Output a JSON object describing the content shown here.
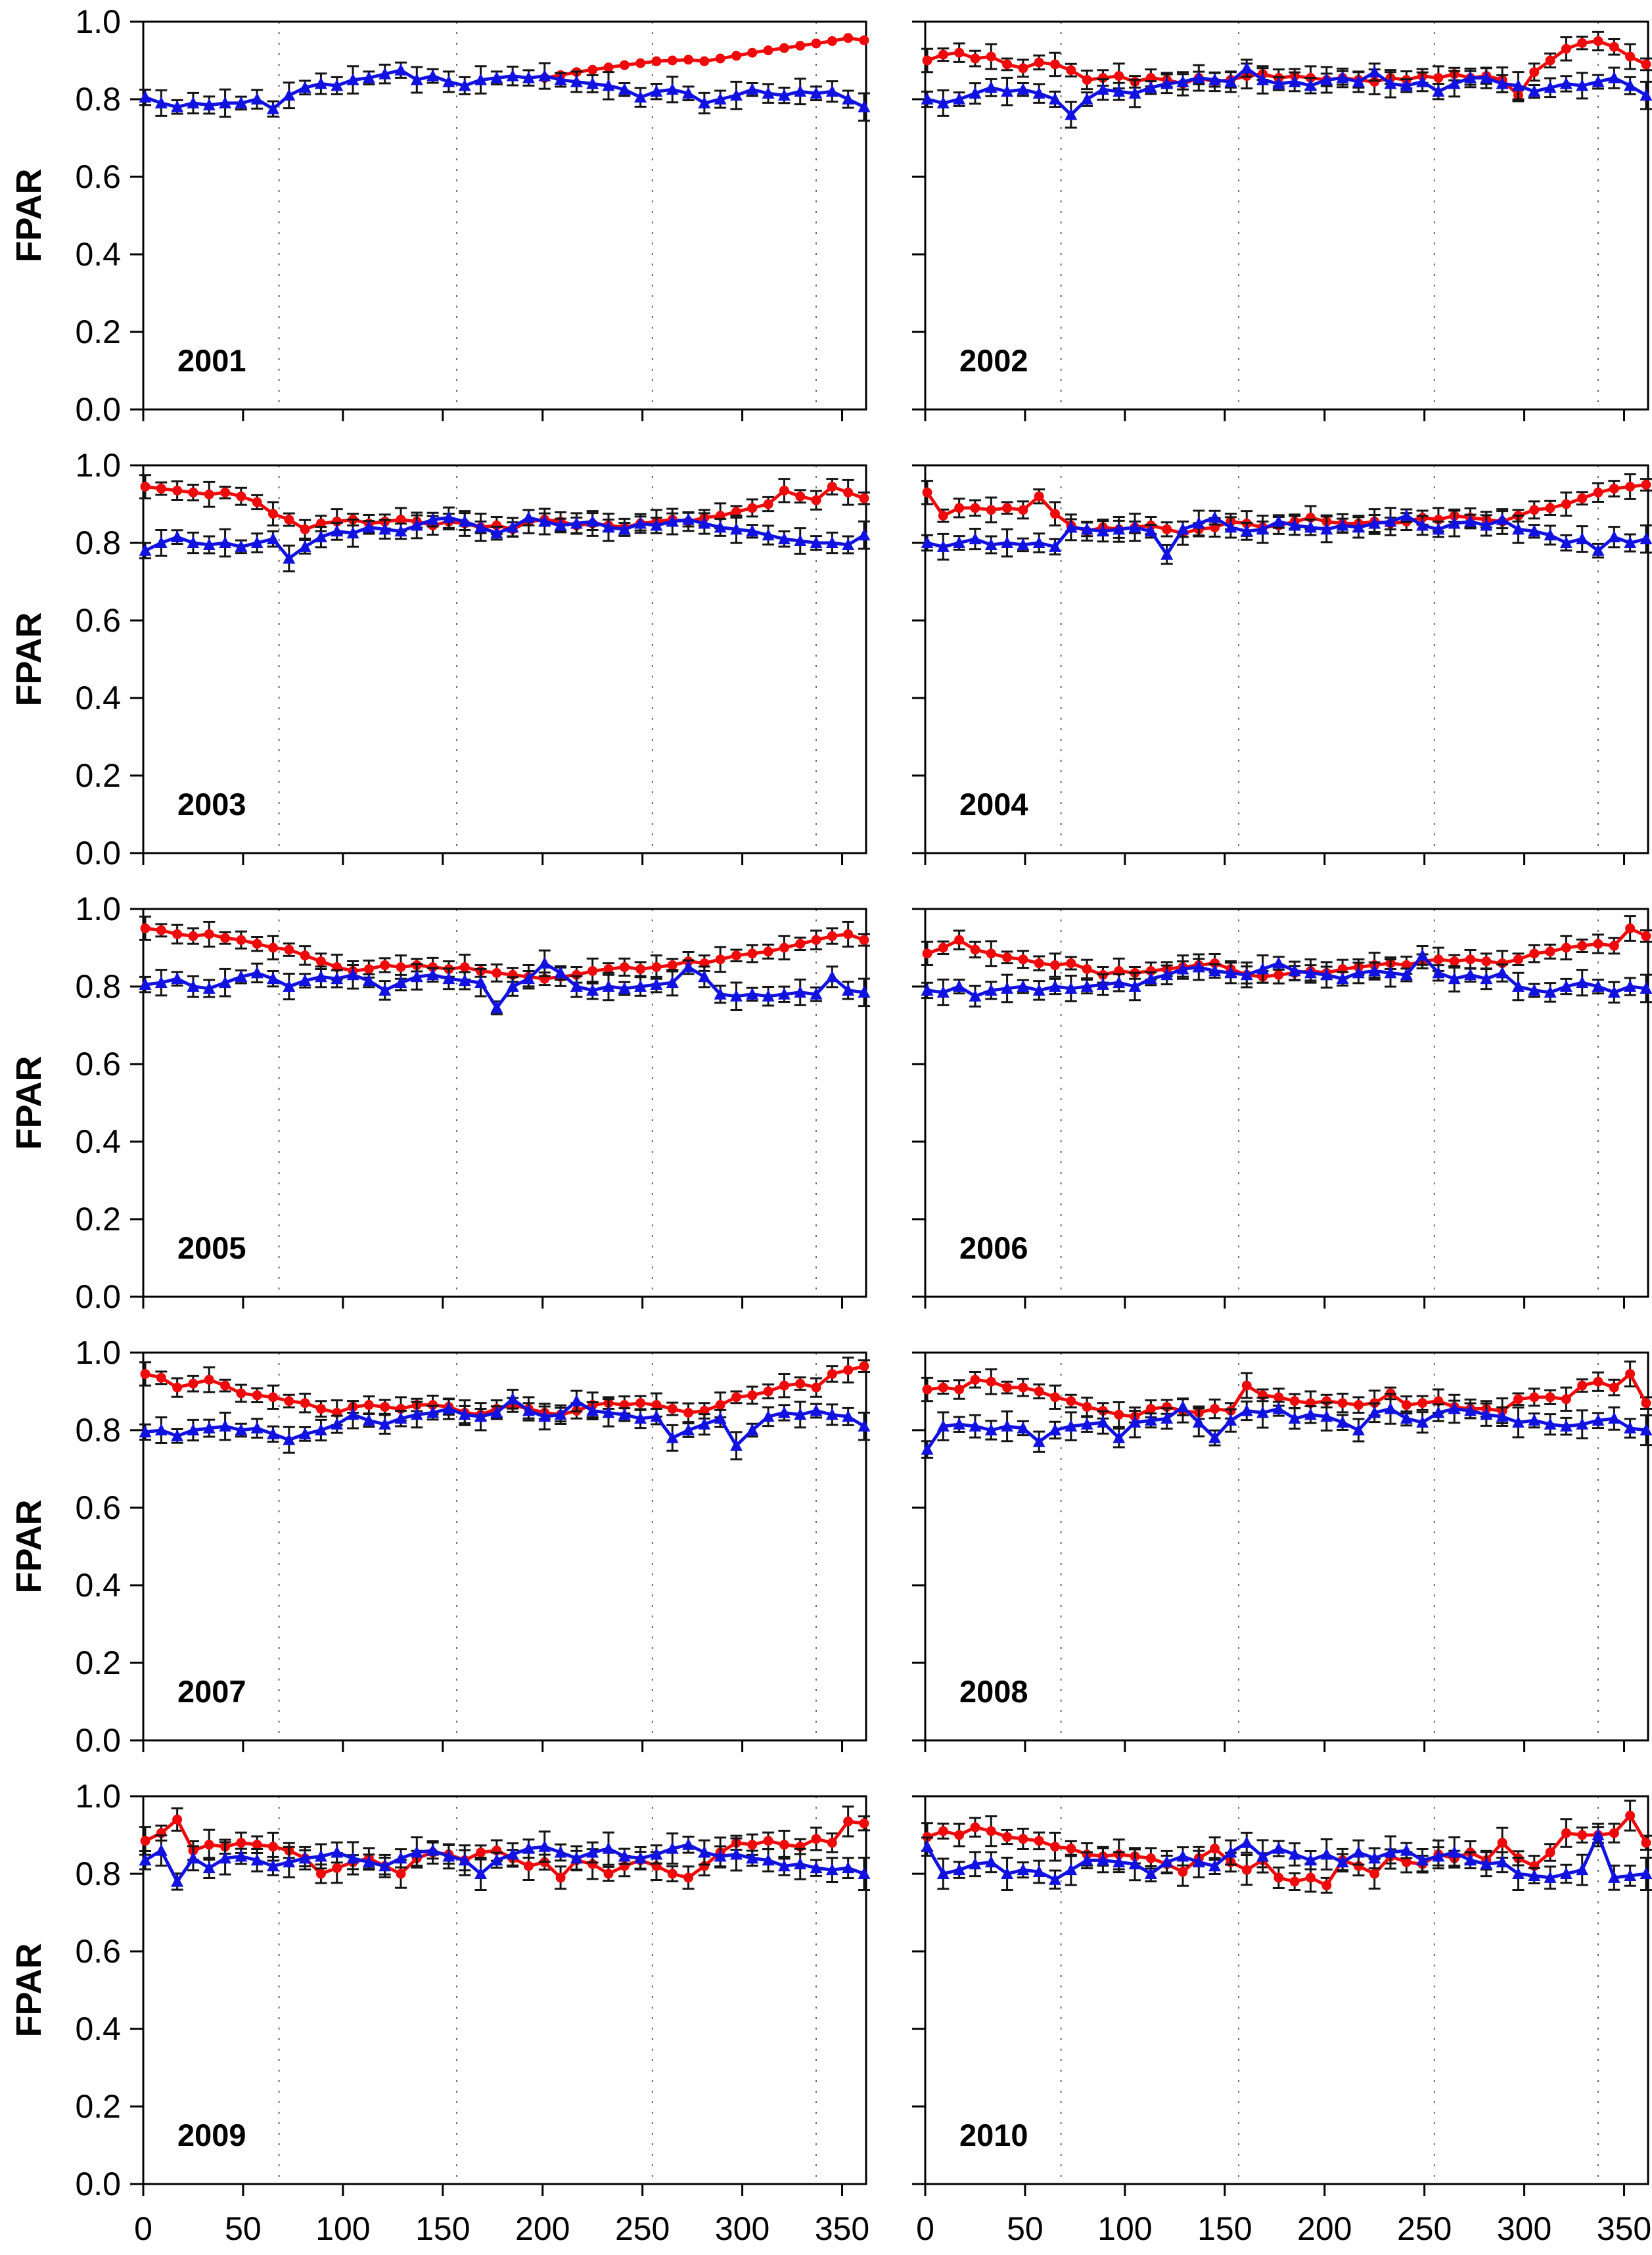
{
  "figure": {
    "ylabel": "FPAR",
    "background_color": "#ffffff",
    "frame_color": "#000000",
    "gridline_color": "#6b6b6b",
    "error_bar_color": "#141414",
    "red_series_color": "#ee0a0a",
    "blue_series_color": "#1212e0",
    "y_tick_labels": [
      "0.0",
      "0.2",
      "0.4",
      "0.6",
      "0.8",
      "1.0"
    ],
    "x_tick_labels": [
      "0",
      "50",
      "100",
      "150",
      "200",
      "250",
      "300",
      "350"
    ]
  },
  "chart_data": {
    "type": "line",
    "title": "",
    "xlabel": "",
    "ylabel": "FPAR",
    "xlim": [
      0,
      362
    ],
    "ylim": [
      0.0,
      1.0
    ],
    "x_ticks": [
      0,
      50,
      100,
      150,
      200,
      250,
      300,
      350
    ],
    "y_ticks": [
      0.0,
      0.2,
      0.4,
      0.6,
      0.8,
      1.0
    ],
    "gridline_days": [
      68,
      157,
      255,
      337
    ],
    "grid": "vertical-dotted",
    "legend_position": "none",
    "series_styles": [
      {
        "name": "red-circles",
        "color": "#ee0a0a",
        "marker": "circle"
      },
      {
        "name": "blue-triangles",
        "color": "#1212e0",
        "marker": "triangle-up"
      }
    ],
    "days": [
      1,
      9,
      17,
      25,
      33,
      41,
      49,
      57,
      65,
      73,
      81,
      89,
      97,
      105,
      113,
      121,
      129,
      137,
      145,
      153,
      161,
      169,
      177,
      185,
      193,
      201,
      209,
      217,
      225,
      233,
      241,
      249,
      257,
      265,
      273,
      281,
      289,
      297,
      305,
      313,
      321,
      329,
      337,
      345,
      353,
      361
    ],
    "err_pattern": [
      1.0,
      1.5,
      0.75,
      1.2,
      0.9,
      1.6,
      0.8,
      1.1
    ],
    "panels": [
      {
        "year": "2001",
        "red_err": 0.0,
        "blue_err": 0.022,
        "red": [
          null,
          null,
          null,
          null,
          null,
          null,
          null,
          null,
          null,
          null,
          null,
          null,
          null,
          null,
          null,
          null,
          null,
          null,
          null,
          null,
          null,
          null,
          null,
          null,
          null,
          0.855,
          0.862,
          0.87,
          0.876,
          0.882,
          0.888,
          0.893,
          0.898,
          0.9,
          0.902,
          0.898,
          0.905,
          0.912,
          0.92,
          0.926,
          0.932,
          0.938,
          0.944,
          0.95,
          0.958,
          0.952
        ],
        "blue": [
          0.805,
          0.79,
          0.78,
          0.79,
          0.785,
          0.79,
          0.79,
          0.8,
          0.775,
          0.81,
          0.83,
          0.84,
          0.835,
          0.85,
          0.855,
          0.865,
          0.875,
          0.85,
          0.86,
          0.845,
          0.835,
          0.85,
          0.855,
          0.86,
          0.855,
          0.86,
          0.85,
          0.845,
          0.84,
          0.835,
          0.825,
          0.805,
          0.82,
          0.825,
          0.815,
          0.79,
          0.8,
          0.81,
          0.825,
          0.815,
          0.81,
          0.82,
          0.815,
          0.82,
          0.8,
          0.78
        ]
      },
      {
        "year": "2002",
        "red_err": 0.02,
        "blue_err": 0.022,
        "red": [
          0.9,
          0.915,
          0.92,
          0.905,
          0.91,
          0.89,
          0.88,
          0.895,
          0.89,
          0.875,
          0.85,
          0.855,
          0.86,
          0.845,
          0.855,
          0.85,
          0.84,
          0.855,
          0.845,
          0.85,
          0.86,
          0.865,
          0.855,
          0.86,
          0.855,
          0.85,
          0.855,
          0.85,
          0.845,
          0.855,
          0.85,
          0.86,
          0.855,
          0.865,
          0.855,
          0.86,
          0.85,
          0.81,
          0.87,
          0.9,
          0.93,
          0.945,
          0.95,
          0.935,
          0.91,
          0.89
        ],
        "blue": [
          0.8,
          0.79,
          0.8,
          0.815,
          0.83,
          0.82,
          0.825,
          0.815,
          0.8,
          0.76,
          0.8,
          0.825,
          0.82,
          0.815,
          0.83,
          0.84,
          0.845,
          0.855,
          0.85,
          0.845,
          0.88,
          0.85,
          0.84,
          0.845,
          0.835,
          0.85,
          0.855,
          0.845,
          0.87,
          0.84,
          0.835,
          0.845,
          0.82,
          0.84,
          0.855,
          0.855,
          0.84,
          0.835,
          0.82,
          0.83,
          0.84,
          0.835,
          0.845,
          0.855,
          0.835,
          0.81
        ]
      },
      {
        "year": "2003",
        "red_err": 0.02,
        "blue_err": 0.022,
        "red": [
          0.945,
          0.94,
          0.935,
          0.93,
          0.925,
          0.93,
          0.92,
          0.905,
          0.875,
          0.86,
          0.835,
          0.85,
          0.855,
          0.86,
          0.85,
          0.855,
          0.86,
          0.855,
          0.845,
          0.855,
          0.85,
          0.84,
          0.845,
          0.835,
          0.855,
          0.86,
          0.855,
          0.845,
          0.85,
          0.845,
          0.84,
          0.85,
          0.855,
          0.86,
          0.855,
          0.865,
          0.87,
          0.88,
          0.89,
          0.9,
          0.935,
          0.92,
          0.91,
          0.945,
          0.93,
          0.915
        ],
        "blue": [
          0.78,
          0.8,
          0.815,
          0.8,
          0.795,
          0.8,
          0.79,
          0.8,
          0.81,
          0.76,
          0.79,
          0.815,
          0.83,
          0.825,
          0.84,
          0.835,
          0.83,
          0.845,
          0.86,
          0.865,
          0.855,
          0.84,
          0.825,
          0.84,
          0.865,
          0.855,
          0.845,
          0.85,
          0.855,
          0.84,
          0.835,
          0.85,
          0.845,
          0.855,
          0.86,
          0.85,
          0.84,
          0.835,
          0.83,
          0.82,
          0.81,
          0.805,
          0.8,
          0.8,
          0.795,
          0.82
        ]
      },
      {
        "year": "2004",
        "red_err": 0.02,
        "blue_err": 0.022,
        "red": [
          0.93,
          0.87,
          0.89,
          0.89,
          0.885,
          0.89,
          0.885,
          0.92,
          0.875,
          0.845,
          0.83,
          0.84,
          0.835,
          0.84,
          0.845,
          0.835,
          0.825,
          0.835,
          0.84,
          0.855,
          0.85,
          0.84,
          0.845,
          0.855,
          0.865,
          0.855,
          0.85,
          0.85,
          0.855,
          0.85,
          0.855,
          0.865,
          0.86,
          0.87,
          0.865,
          0.86,
          0.855,
          0.87,
          0.885,
          0.89,
          0.9,
          0.915,
          0.93,
          0.94,
          0.945,
          0.95
        ],
        "blue": [
          0.8,
          0.79,
          0.8,
          0.81,
          0.795,
          0.8,
          0.795,
          0.8,
          0.79,
          0.84,
          0.835,
          0.83,
          0.835,
          0.84,
          0.83,
          0.77,
          0.835,
          0.85,
          0.865,
          0.84,
          0.83,
          0.835,
          0.855,
          0.845,
          0.84,
          0.835,
          0.845,
          0.84,
          0.85,
          0.855,
          0.87,
          0.845,
          0.835,
          0.85,
          0.855,
          0.845,
          0.86,
          0.835,
          0.83,
          0.82,
          0.8,
          0.81,
          0.78,
          0.815,
          0.8,
          0.81
        ]
      },
      {
        "year": "2005",
        "red_err": 0.02,
        "blue_err": 0.022,
        "red": [
          0.95,
          0.945,
          0.935,
          0.93,
          0.935,
          0.925,
          0.92,
          0.91,
          0.9,
          0.895,
          0.88,
          0.865,
          0.85,
          0.84,
          0.845,
          0.855,
          0.85,
          0.855,
          0.85,
          0.845,
          0.85,
          0.84,
          0.835,
          0.83,
          0.825,
          0.82,
          0.825,
          0.83,
          0.84,
          0.845,
          0.85,
          0.845,
          0.85,
          0.855,
          0.865,
          0.86,
          0.87,
          0.88,
          0.885,
          0.89,
          0.9,
          0.91,
          0.92,
          0.93,
          0.935,
          0.92
        ],
        "blue": [
          0.805,
          0.81,
          0.82,
          0.8,
          0.795,
          0.81,
          0.825,
          0.835,
          0.82,
          0.8,
          0.815,
          0.825,
          0.82,
          0.83,
          0.815,
          0.79,
          0.81,
          0.825,
          0.83,
          0.82,
          0.815,
          0.81,
          0.745,
          0.8,
          0.82,
          0.86,
          0.835,
          0.8,
          0.79,
          0.8,
          0.795,
          0.8,
          0.805,
          0.81,
          0.85,
          0.825,
          0.78,
          0.775,
          0.78,
          0.775,
          0.78,
          0.785,
          0.78,
          0.825,
          0.79,
          0.785
        ]
      },
      {
        "year": "2006",
        "red_err": 0.02,
        "blue_err": 0.022,
        "red": [
          0.885,
          0.9,
          0.92,
          0.895,
          0.885,
          0.875,
          0.87,
          0.86,
          0.855,
          0.86,
          0.845,
          0.83,
          0.84,
          0.835,
          0.84,
          0.845,
          0.85,
          0.855,
          0.86,
          0.845,
          0.83,
          0.825,
          0.83,
          0.835,
          0.84,
          0.835,
          0.845,
          0.85,
          0.855,
          0.86,
          0.855,
          0.865,
          0.87,
          0.865,
          0.87,
          0.865,
          0.86,
          0.87,
          0.885,
          0.89,
          0.9,
          0.905,
          0.91,
          0.905,
          0.95,
          0.93
        ],
        "blue": [
          0.79,
          0.785,
          0.8,
          0.775,
          0.79,
          0.795,
          0.8,
          0.79,
          0.8,
          0.795,
          0.8,
          0.805,
          0.81,
          0.8,
          0.82,
          0.83,
          0.845,
          0.85,
          0.84,
          0.835,
          0.83,
          0.845,
          0.86,
          0.84,
          0.835,
          0.83,
          0.82,
          0.835,
          0.84,
          0.835,
          0.83,
          0.88,
          0.835,
          0.82,
          0.83,
          0.82,
          0.835,
          0.8,
          0.79,
          0.785,
          0.8,
          0.81,
          0.8,
          0.785,
          0.8,
          0.795
        ]
      },
      {
        "year": "2007",
        "red_err": 0.02,
        "blue_err": 0.022,
        "red": [
          0.945,
          0.935,
          0.91,
          0.92,
          0.93,
          0.915,
          0.895,
          0.89,
          0.885,
          0.875,
          0.87,
          0.855,
          0.845,
          0.86,
          0.865,
          0.86,
          0.855,
          0.865,
          0.865,
          0.86,
          0.845,
          0.84,
          0.855,
          0.865,
          0.855,
          0.845,
          0.84,
          0.85,
          0.865,
          0.87,
          0.865,
          0.87,
          0.865,
          0.855,
          0.845,
          0.85,
          0.865,
          0.885,
          0.89,
          0.9,
          0.915,
          0.92,
          0.91,
          0.945,
          0.955,
          0.965
        ],
        "blue": [
          0.795,
          0.8,
          0.785,
          0.8,
          0.805,
          0.81,
          0.8,
          0.805,
          0.79,
          0.775,
          0.79,
          0.8,
          0.815,
          0.84,
          0.825,
          0.815,
          0.83,
          0.84,
          0.845,
          0.855,
          0.84,
          0.835,
          0.845,
          0.88,
          0.85,
          0.835,
          0.84,
          0.875,
          0.85,
          0.845,
          0.84,
          0.83,
          0.835,
          0.78,
          0.8,
          0.815,
          0.83,
          0.76,
          0.8,
          0.835,
          0.845,
          0.84,
          0.85,
          0.84,
          0.835,
          0.81
        ]
      },
      {
        "year": "2008",
        "red_err": 0.02,
        "blue_err": 0.024,
        "red": [
          0.905,
          0.91,
          0.905,
          0.93,
          0.925,
          0.91,
          0.91,
          0.9,
          0.885,
          0.875,
          0.86,
          0.85,
          0.84,
          0.835,
          0.855,
          0.86,
          0.85,
          0.845,
          0.855,
          0.85,
          0.915,
          0.89,
          0.885,
          0.875,
          0.87,
          0.875,
          0.87,
          0.865,
          0.87,
          0.895,
          0.865,
          0.87,
          0.875,
          0.86,
          0.855,
          0.855,
          0.85,
          0.88,
          0.885,
          0.885,
          0.88,
          0.915,
          0.925,
          0.91,
          0.945,
          0.87
        ],
        "blue": [
          0.75,
          0.81,
          0.815,
          0.81,
          0.8,
          0.81,
          0.805,
          0.77,
          0.8,
          0.81,
          0.815,
          0.82,
          0.78,
          0.82,
          0.825,
          0.83,
          0.86,
          0.82,
          0.78,
          0.825,
          0.85,
          0.845,
          0.855,
          0.83,
          0.84,
          0.835,
          0.82,
          0.8,
          0.845,
          0.855,
          0.83,
          0.82,
          0.845,
          0.855,
          0.85,
          0.84,
          0.835,
          0.82,
          0.825,
          0.815,
          0.81,
          0.815,
          0.825,
          0.83,
          0.805,
          0.8
        ]
      },
      {
        "year": "2009",
        "red_err": 0.024,
        "blue_err": 0.026,
        "red": [
          0.885,
          0.905,
          0.94,
          0.86,
          0.875,
          0.87,
          0.88,
          0.875,
          0.87,
          0.86,
          0.84,
          0.8,
          0.815,
          0.83,
          0.84,
          0.82,
          0.8,
          0.84,
          0.855,
          0.85,
          0.835,
          0.855,
          0.86,
          0.84,
          0.82,
          0.83,
          0.79,
          0.835,
          0.825,
          0.8,
          0.82,
          0.835,
          0.82,
          0.8,
          0.79,
          0.82,
          0.855,
          0.88,
          0.875,
          0.885,
          0.875,
          0.87,
          0.89,
          0.88,
          0.935,
          0.93
        ],
        "blue": [
          0.835,
          0.86,
          0.78,
          0.84,
          0.815,
          0.84,
          0.845,
          0.835,
          0.82,
          0.83,
          0.84,
          0.845,
          0.855,
          0.84,
          0.83,
          0.82,
          0.84,
          0.855,
          0.86,
          0.845,
          0.835,
          0.8,
          0.835,
          0.85,
          0.865,
          0.87,
          0.855,
          0.84,
          0.855,
          0.865,
          0.845,
          0.84,
          0.85,
          0.865,
          0.875,
          0.855,
          0.845,
          0.85,
          0.84,
          0.835,
          0.82,
          0.825,
          0.815,
          0.81,
          0.815,
          0.8
        ]
      },
      {
        "year": "2010",
        "red_err": 0.024,
        "blue_err": 0.026,
        "red": [
          0.895,
          0.91,
          0.9,
          0.92,
          0.91,
          0.895,
          0.89,
          0.885,
          0.87,
          0.865,
          0.85,
          0.845,
          0.85,
          0.845,
          0.84,
          0.825,
          0.805,
          0.84,
          0.865,
          0.83,
          0.81,
          0.835,
          0.79,
          0.78,
          0.79,
          0.77,
          0.835,
          0.82,
          0.8,
          0.845,
          0.83,
          0.825,
          0.85,
          0.84,
          0.855,
          0.835,
          0.88,
          0.84,
          0.82,
          0.855,
          0.905,
          0.9,
          0.9,
          0.905,
          0.95,
          0.88
        ],
        "blue": [
          0.87,
          0.8,
          0.81,
          0.825,
          0.83,
          0.8,
          0.81,
          0.805,
          0.785,
          0.81,
          0.835,
          0.835,
          0.83,
          0.825,
          0.8,
          0.83,
          0.845,
          0.83,
          0.82,
          0.855,
          0.88,
          0.845,
          0.865,
          0.85,
          0.835,
          0.85,
          0.83,
          0.855,
          0.84,
          0.855,
          0.86,
          0.835,
          0.845,
          0.855,
          0.835,
          0.825,
          0.83,
          0.8,
          0.795,
          0.79,
          0.8,
          0.81,
          0.9,
          0.79,
          0.795,
          0.8
        ]
      }
    ]
  }
}
